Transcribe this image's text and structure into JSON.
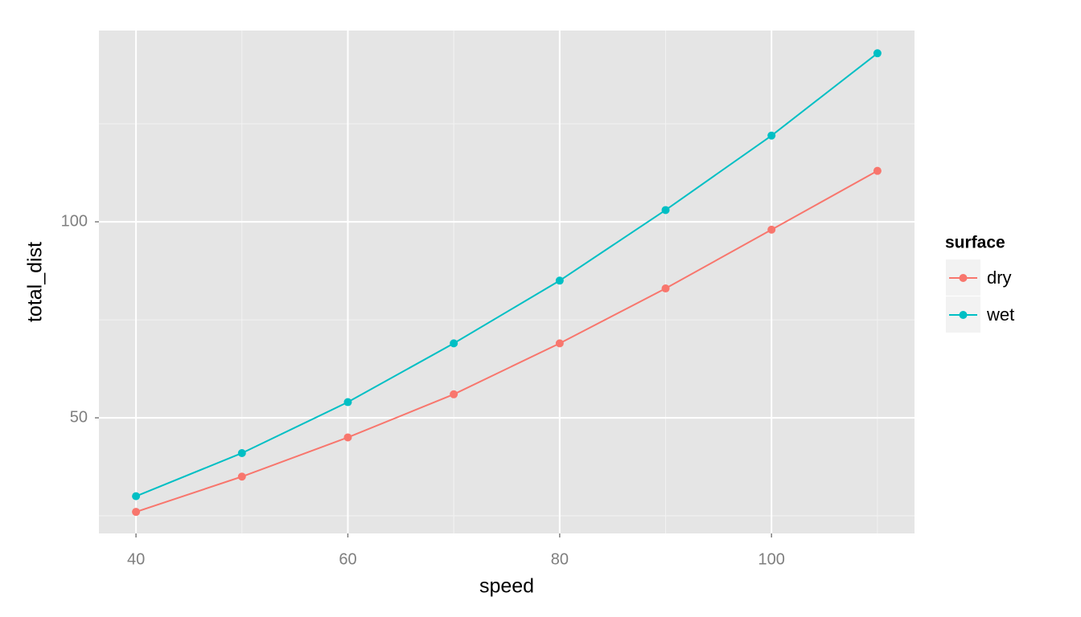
{
  "chart_data": {
    "type": "line",
    "x_label": "speed",
    "y_label": "total_dist",
    "x": [
      40,
      50,
      60,
      70,
      80,
      90,
      100,
      110
    ],
    "series": [
      {
        "name": "dry",
        "color": "#F8766D",
        "values": [
          26,
          35,
          45,
          56,
          69,
          83,
          98,
          113
        ]
      },
      {
        "name": "wet",
        "color": "#00BFC4",
        "values": [
          30,
          41,
          54,
          69,
          85,
          103,
          122,
          143
        ]
      }
    ],
    "xlim": [
      36.5,
      113.5
    ],
    "ylim": [
      20.5,
      148.8
    ],
    "xticks": [
      40,
      60,
      80,
      100
    ],
    "yticks": [
      50,
      100
    ],
    "xminor": [
      50,
      70,
      90,
      110
    ],
    "yminor": [
      25,
      75,
      125
    ],
    "grid": true,
    "legend_title": "surface",
    "legend_position": "right"
  }
}
